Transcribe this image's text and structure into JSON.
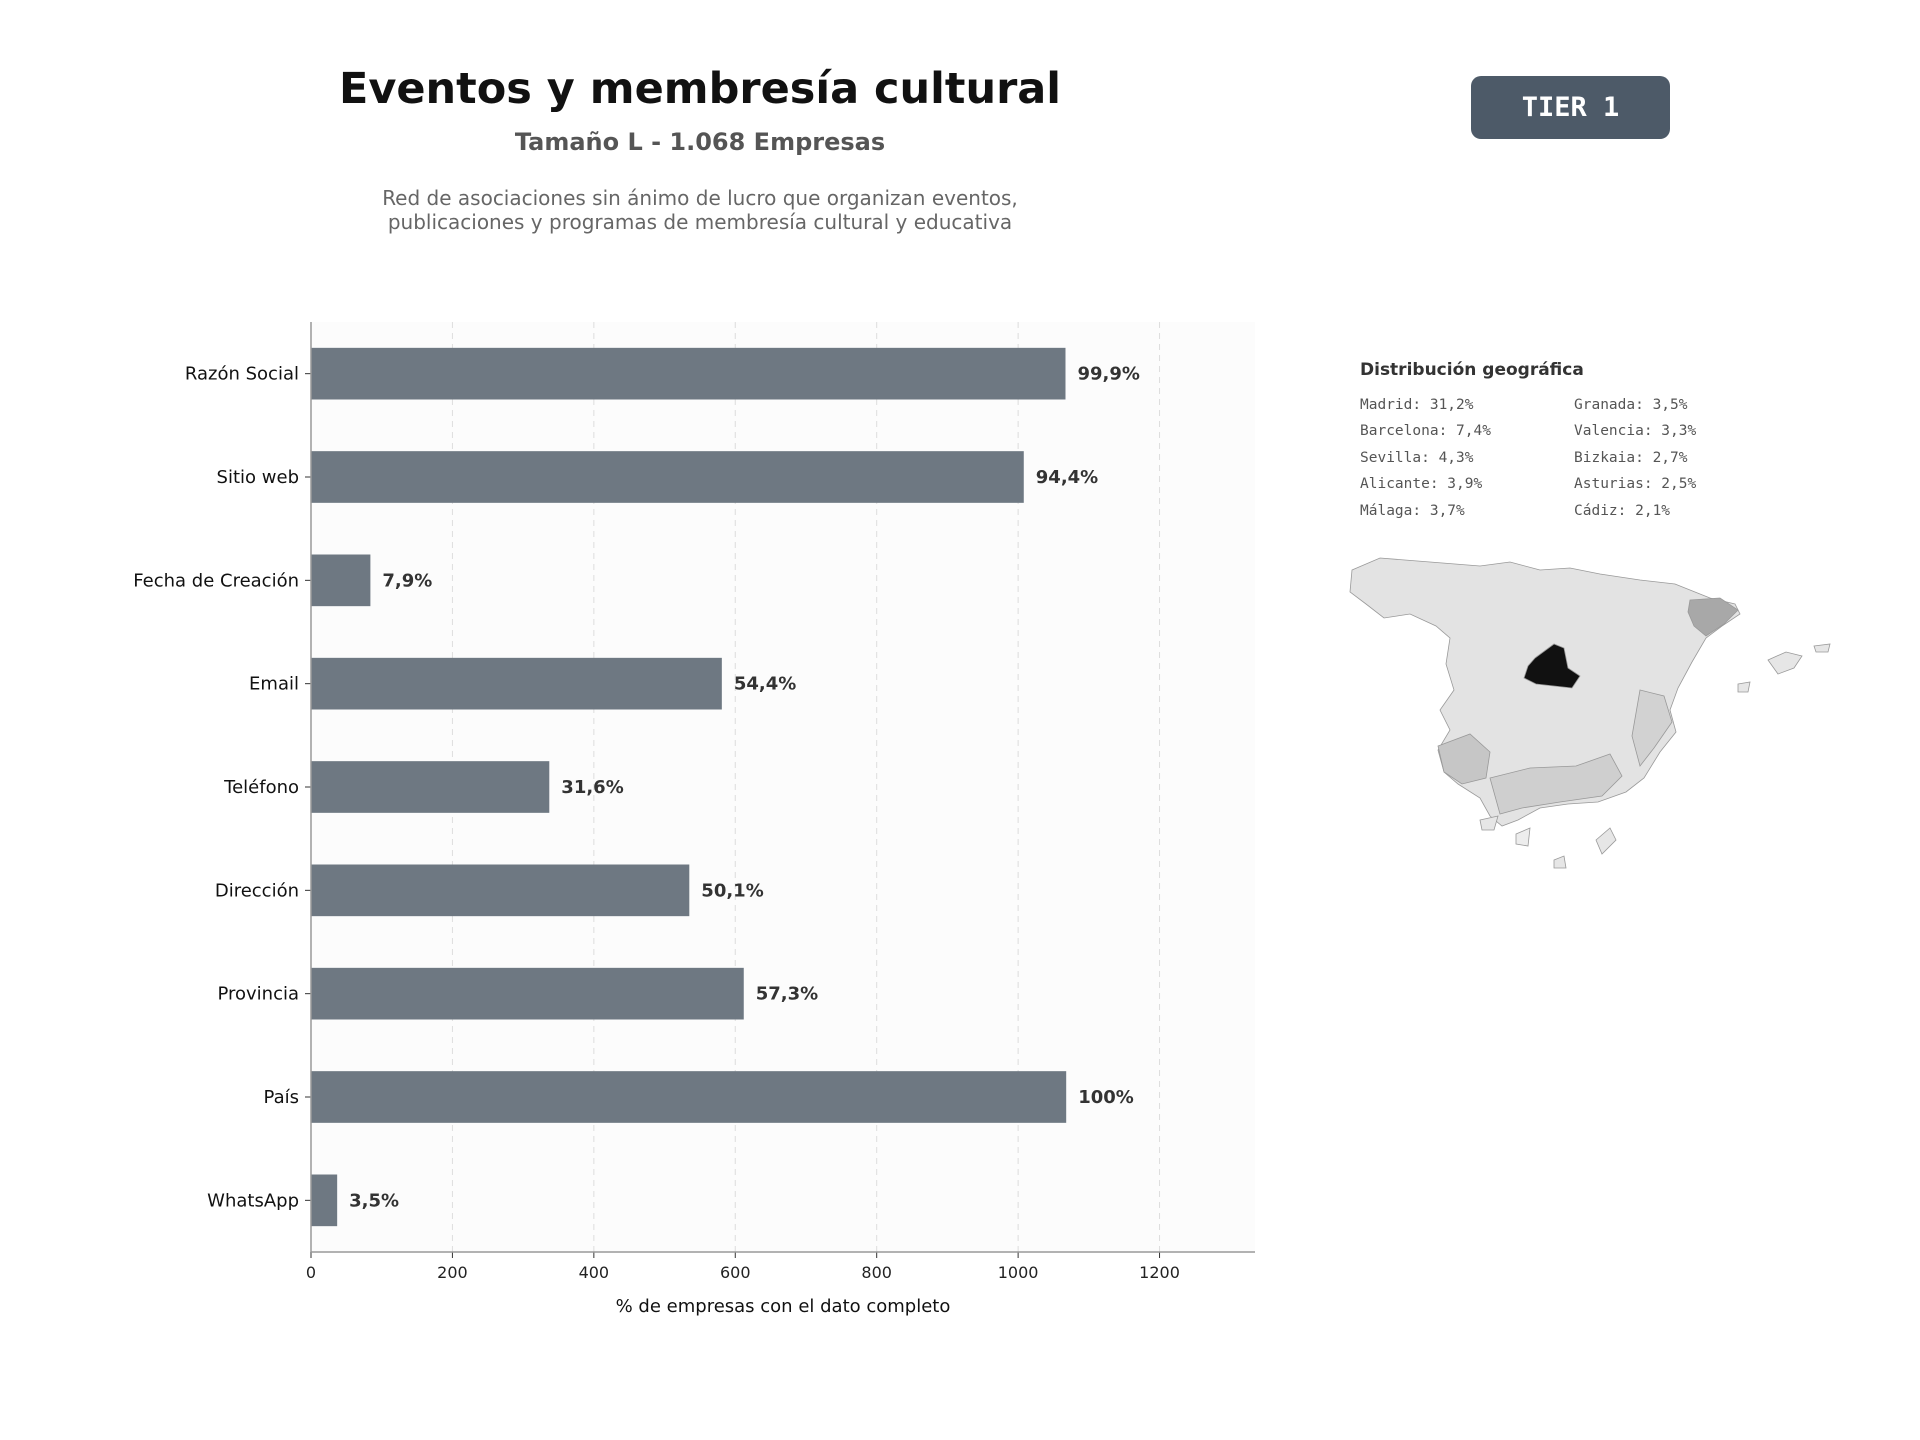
{
  "header": {
    "title": "Eventos y membresía cultural",
    "subtitle": "Tamaño L - 1.068 Empresas",
    "description_lines": [
      "Red de asociaciones sin ánimo de lucro que organizan eventos,",
      "publicaciones y programas de membresía cultural y educativa"
    ],
    "tier_badge": "TIER 1"
  },
  "geo": {
    "title": "Distribución geográfica",
    "items": [
      "Madrid: 31,2%",
      "Barcelona: 7,4%",
      "Sevilla: 4,3%",
      "Alicante: 3,9%",
      "Málaga: 3,7%",
      "Granada: 3,5%",
      "Valencia: 3,3%",
      "Bizkaia: 2,7%",
      "Asturias: 2,5%",
      "Cádiz: 2,1%"
    ]
  },
  "chart_data": {
    "type": "bar",
    "orientation": "horizontal",
    "categories": [
      "Razón Social",
      "Sitio web",
      "Fecha de Creación",
      "Email",
      "Teléfono",
      "Dirección",
      "Provincia",
      "País",
      "WhatsApp"
    ],
    "values": [
      1067,
      1008,
      84,
      581,
      337,
      535,
      612,
      1068,
      37
    ],
    "data_labels": [
      "99,9%",
      "94,4%",
      "7,9%",
      "54,4%",
      "31,6%",
      "50,1%",
      "57,3%",
      "100%",
      "3,5%"
    ],
    "xlabel": "% de empresas con el dato completo",
    "xlim": [
      0,
      1335
    ],
    "xticks": [
      0,
      200,
      400,
      600,
      800,
      1000,
      1200
    ],
    "grid": "vertical dashed",
    "colors": {
      "bar": "#6e7882",
      "plot_bg": "#fcfcfc",
      "badge": "#4d5a68"
    }
  }
}
